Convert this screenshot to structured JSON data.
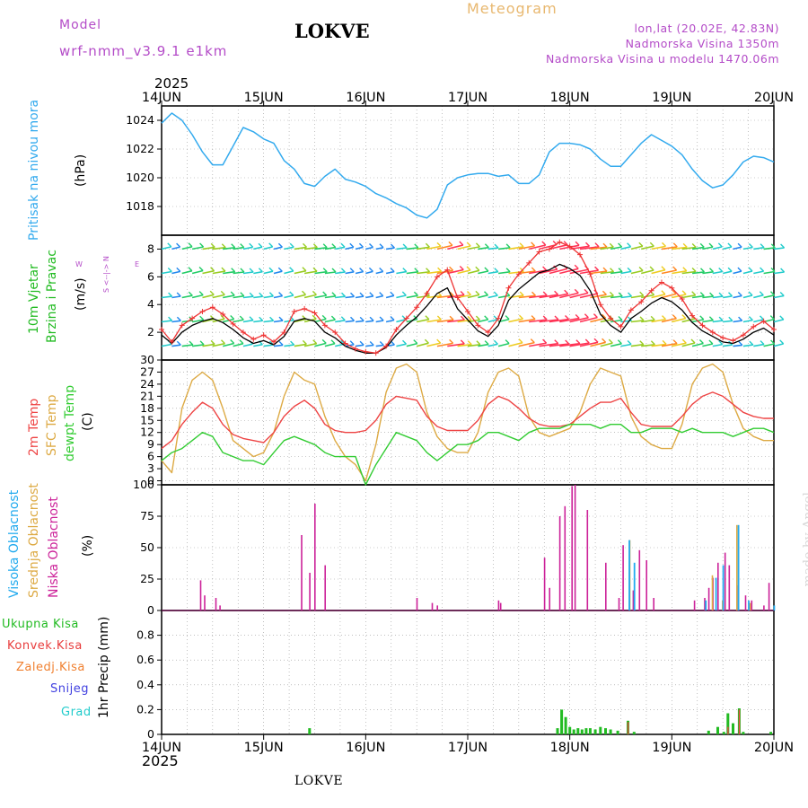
{
  "header": {
    "model_label": "Model",
    "model_name": "wrf-nmm_v3.9.1  e1km",
    "station": "LOKVE",
    "title": "Meteogram",
    "lonlat": "lon,lat (20.02E, 42.83N)",
    "elevation": "Nadmorska Visina 1350m",
    "model_elevation": "Nadmorska Visina u modelu 1470.06m",
    "year_top": "2025",
    "year_bottom": "2025",
    "footer_station": "LOKVE",
    "credit": "made by Angel"
  },
  "colors": {
    "pressure": "#33aaee",
    "temp2m": "#ee4444",
    "sfc_temp": "#ddaa44",
    "dewpt": "#33cc33",
    "wind_speed": "#ee3333",
    "wind_mean": "#000000",
    "cloud_high": "#22aaee",
    "cloud_mid": "#ddaa44",
    "cloud_low": "#cc2299",
    "precip_total": "#22bb22",
    "precip_conv": "#ee4444",
    "precip_frozen": "#f08030",
    "precip_snow": "#4040e0",
    "precip_hail": "#22cccc",
    "legend_purple": "#b44cc8"
  },
  "chart_data": [
    {
      "type": "line",
      "panel": "pressure",
      "title": "",
      "ylabel_lines": [
        "Pritisak na nivou mora",
        "(hPa)"
      ],
      "ylim": [
        1016,
        1025
      ],
      "yticks": [
        1018,
        1020,
        1022,
        1024
      ],
      "x_days": [
        0,
        0.1,
        0.2,
        0.3,
        0.4,
        0.5,
        0.6,
        0.7,
        0.8,
        0.9,
        1.0,
        1.1,
        1.2,
        1.3,
        1.4,
        1.5,
        1.6,
        1.7,
        1.8,
        1.9,
        2.0,
        2.1,
        2.2,
        2.3,
        2.4,
        2.5,
        2.6,
        2.7,
        2.8,
        2.9,
        3.0,
        3.1,
        3.2,
        3.3,
        3.4,
        3.5,
        3.6,
        3.7,
        3.8,
        3.9,
        4.0,
        4.1,
        4.2,
        4.3,
        4.4,
        4.5,
        4.6,
        4.7,
        4.8,
        4.9,
        5.0,
        5.1,
        5.2,
        5.3,
        5.4,
        5.5,
        5.6,
        5.7,
        5.8,
        5.9,
        6.0
      ],
      "values": [
        1023.8,
        1024.5,
        1024.0,
        1023.0,
        1021.8,
        1020.9,
        1020.9,
        1022.2,
        1023.5,
        1023.2,
        1022.7,
        1022.4,
        1021.2,
        1020.6,
        1019.6,
        1019.4,
        1020.1,
        1020.6,
        1019.9,
        1019.7,
        1019.4,
        1018.9,
        1018.6,
        1018.2,
        1017.9,
        1017.4,
        1017.2,
        1017.8,
        1019.5,
        1020.0,
        1020.2,
        1020.3,
        1020.3,
        1020.1,
        1020.2,
        1019.6,
        1019.6,
        1020.2,
        1021.8,
        1022.4,
        1022.4,
        1022.3,
        1022.0,
        1021.3,
        1020.8,
        1020.8,
        1021.6,
        1022.4,
        1023.0,
        1022.6,
        1022.2,
        1021.6,
        1020.6,
        1019.8,
        1019.3,
        1019.5,
        1020.2,
        1021.1,
        1021.5,
        1021.4,
        1021.1
      ]
    },
    {
      "type": "line",
      "panel": "wind",
      "title": "",
      "ylabel_lines": [
        "10m Vjetar",
        "Brzina i Pravac",
        "(m/s)"
      ],
      "direction_legend": [
        "W",
        "<-",
        "E",
        "N",
        "S"
      ],
      "ylim": [
        0,
        9
      ],
      "yticks": [
        2,
        4,
        6,
        8
      ],
      "x_days": [
        0,
        0.1,
        0.2,
        0.3,
        0.4,
        0.5,
        0.6,
        0.7,
        0.8,
        0.9,
        1.0,
        1.1,
        1.2,
        1.3,
        1.4,
        1.5,
        1.6,
        1.7,
        1.8,
        1.9,
        2.0,
        2.1,
        2.2,
        2.3,
        2.4,
        2.5,
        2.6,
        2.7,
        2.8,
        2.9,
        3.0,
        3.1,
        3.2,
        3.3,
        3.4,
        3.5,
        3.6,
        3.7,
        3.8,
        3.9,
        4.0,
        4.1,
        4.2,
        4.3,
        4.4,
        4.5,
        4.6,
        4.7,
        4.8,
        4.9,
        5.0,
        5.1,
        5.2,
        5.3,
        5.4,
        5.5,
        5.6,
        5.7,
        5.8,
        5.9,
        6.0
      ],
      "gust": [
        2.2,
        1.3,
        2.5,
        3.0,
        3.5,
        3.8,
        3.3,
        2.6,
        2.0,
        1.5,
        1.8,
        1.3,
        2.0,
        3.5,
        3.7,
        3.4,
        2.5,
        2.0,
        1.2,
        0.8,
        0.6,
        0.5,
        1.0,
        2.2,
        3.0,
        3.8,
        4.8,
        6.0,
        6.5,
        4.5,
        3.5,
        2.5,
        2.0,
        3.0,
        5.2,
        6.2,
        7.0,
        7.8,
        8.0,
        8.5,
        8.2,
        7.6,
        6.2,
        4.0,
        3.0,
        2.4,
        3.6,
        4.2,
        5.0,
        5.6,
        5.2,
        4.4,
        3.2,
        2.5,
        2.0,
        1.6,
        1.4,
        1.8,
        2.4,
        2.8,
        2.2
      ],
      "mean": [
        1.8,
        1.2,
        2.0,
        2.5,
        2.8,
        3.0,
        2.7,
        2.2,
        1.6,
        1.2,
        1.4,
        1.1,
        1.7,
        2.8,
        3.0,
        2.8,
        2.0,
        1.6,
        1.0,
        0.7,
        0.5,
        0.5,
        0.9,
        1.8,
        2.5,
        3.1,
        3.9,
        4.8,
        5.2,
        3.7,
        2.9,
        2.1,
        1.7,
        2.5,
        4.3,
        5.1,
        5.7,
        6.3,
        6.5,
        6.9,
        6.6,
        6.1,
        5.0,
        3.3,
        2.5,
        2.0,
        3.0,
        3.5,
        4.1,
        4.5,
        4.2,
        3.6,
        2.7,
        2.1,
        1.7,
        1.3,
        1.2,
        1.5,
        2.0,
        2.3,
        1.8
      ]
    },
    {
      "type": "line",
      "panel": "temperature",
      "title": "",
      "ylabel_lines": [
        "2m Temp",
        "SFC Temp",
        "dewpt Temp",
        "(C)"
      ],
      "ylim": [
        -1,
        30
      ],
      "yticks": [
        0,
        3,
        6,
        9,
        12,
        15,
        18,
        21,
        24,
        27,
        30
      ],
      "x_days": [
        0,
        0.1,
        0.2,
        0.3,
        0.4,
        0.5,
        0.6,
        0.7,
        0.8,
        0.9,
        1.0,
        1.1,
        1.2,
        1.3,
        1.4,
        1.5,
        1.6,
        1.7,
        1.8,
        1.9,
        2.0,
        2.1,
        2.2,
        2.3,
        2.4,
        2.5,
        2.6,
        2.7,
        2.8,
        2.9,
        3.0,
        3.1,
        3.2,
        3.3,
        3.4,
        3.5,
        3.6,
        3.7,
        3.8,
        3.9,
        4.0,
        4.1,
        4.2,
        4.3,
        4.4,
        4.5,
        4.6,
        4.7,
        4.8,
        4.9,
        5.0,
        5.1,
        5.2,
        5.3,
        5.4,
        5.5,
        5.6,
        5.7,
        5.8,
        5.9,
        6.0
      ],
      "temp2m": [
        8,
        10,
        14,
        17,
        19.5,
        18,
        14,
        11.5,
        10.5,
        10,
        9.5,
        12,
        16,
        18.5,
        20,
        18,
        14,
        12.5,
        12,
        12,
        12.5,
        15,
        19,
        21,
        20.5,
        20,
        16,
        13.5,
        12.5,
        12.5,
        12.5,
        15,
        19,
        21,
        20,
        18,
        15.5,
        14,
        13.5,
        13.5,
        14,
        16,
        18,
        19.5,
        19.5,
        20.5,
        17,
        14,
        13.5,
        13.5,
        13.5,
        16,
        19,
        21,
        22,
        21,
        19,
        17,
        16,
        15.5,
        15.5
      ],
      "sfc_temp": [
        5,
        2,
        18,
        25,
        27,
        25,
        18,
        10,
        8,
        6,
        7,
        12,
        21,
        27,
        25,
        24,
        16,
        10,
        6,
        4,
        0,
        9,
        22,
        28,
        29,
        27,
        17,
        11,
        8,
        7,
        7,
        12,
        22,
        27,
        28,
        26,
        16,
        12,
        11,
        12,
        13,
        17,
        24,
        28,
        27,
        26,
        16,
        11,
        9,
        8,
        8,
        14,
        24,
        28,
        29,
        27,
        19,
        13,
        11,
        10,
        10
      ],
      "dewpt": [
        5,
        7,
        8,
        10,
        12,
        11,
        7,
        6,
        5,
        5,
        4,
        7,
        10,
        11,
        10,
        9,
        7,
        6,
        6,
        6,
        -1,
        4,
        8,
        12,
        11,
        10,
        7,
        5,
        7,
        9,
        9,
        10,
        12,
        12,
        11,
        10,
        12,
        13,
        13,
        13,
        14,
        14,
        14,
        13,
        14,
        14,
        12,
        12,
        13,
        13,
        13,
        12,
        13,
        12,
        12,
        12,
        11,
        12,
        13,
        13,
        12
      ]
    },
    {
      "type": "bar",
      "panel": "cloud",
      "title": "",
      "ylabel_lines": [
        "Visoka Oblacnost",
        "Srednja Oblacnost",
        "Niska Oblacnost",
        "(%)"
      ],
      "ylim": [
        0,
        100
      ],
      "yticks": [
        0,
        25,
        50,
        75,
        100
      ],
      "low": [
        [
          0.38,
          24
        ],
        [
          0.42,
          12
        ],
        [
          0.53,
          10
        ],
        [
          0.57,
          4
        ],
        [
          1.37,
          60
        ],
        [
          1.45,
          30
        ],
        [
          1.5,
          85
        ],
        [
          1.6,
          36
        ],
        [
          2.5,
          10
        ],
        [
          2.65,
          6
        ],
        [
          2.7,
          4
        ],
        [
          3.3,
          8
        ],
        [
          3.32,
          6
        ],
        [
          3.75,
          42
        ],
        [
          3.8,
          18
        ],
        [
          3.9,
          75
        ],
        [
          3.95,
          83
        ],
        [
          4.02,
          99
        ],
        [
          4.05,
          100
        ],
        [
          4.17,
          80
        ],
        [
          4.35,
          38
        ],
        [
          4.48,
          10
        ],
        [
          4.52,
          52
        ],
        [
          4.62,
          16
        ],
        [
          4.68,
          48
        ],
        [
          4.75,
          40
        ],
        [
          4.82,
          10
        ],
        [
          5.22,
          8
        ],
        [
          5.32,
          10
        ],
        [
          5.36,
          18
        ],
        [
          5.4,
          26
        ],
        [
          5.45,
          38
        ],
        [
          5.52,
          46
        ],
        [
          5.56,
          36
        ],
        [
          5.65,
          20
        ],
        [
          5.72,
          12
        ],
        [
          5.78,
          8
        ],
        [
          5.9,
          4
        ],
        [
          5.95,
          22
        ]
      ],
      "mid": [
        [
          4.57,
          56
        ],
        [
          5.38,
          28
        ],
        [
          5.48,
          8
        ],
        [
          5.62,
          68
        ],
        [
          5.75,
          6
        ]
      ],
      "high": [
        [
          4.55,
          56
        ],
        [
          4.6,
          38
        ],
        [
          5.3,
          8
        ],
        [
          5.4,
          26
        ],
        [
          5.47,
          36
        ],
        [
          5.62,
          68
        ],
        [
          5.72,
          8
        ],
        [
          5.97,
          4
        ]
      ]
    },
    {
      "type": "bar",
      "panel": "precip",
      "title": "",
      "ylabel_lines": [
        "1hr Precip (mm)"
      ],
      "legend": [
        "Ukupna Kisa",
        "Konvek.Kisa",
        "Zaledj.Kisa",
        "Snijeg",
        "Grad"
      ],
      "ylim": [
        0,
        1.0
      ],
      "yticks": [
        0,
        0.2,
        0.4,
        0.6,
        0.8
      ],
      "total": [
        [
          1.45,
          0.05
        ],
        [
          3.88,
          0.05
        ],
        [
          3.92,
          0.2
        ],
        [
          3.96,
          0.14
        ],
        [
          4.0,
          0.06
        ],
        [
          4.04,
          0.04
        ],
        [
          4.08,
          0.05
        ],
        [
          4.12,
          0.04
        ],
        [
          4.16,
          0.05
        ],
        [
          4.2,
          0.05
        ],
        [
          4.25,
          0.04
        ],
        [
          4.3,
          0.06
        ],
        [
          4.35,
          0.05
        ],
        [
          4.4,
          0.04
        ],
        [
          4.47,
          0.03
        ],
        [
          4.57,
          0.11
        ],
        [
          4.63,
          0.02
        ],
        [
          5.36,
          0.03
        ],
        [
          5.45,
          0.06
        ],
        [
          5.51,
          0.02
        ],
        [
          5.55,
          0.17
        ],
        [
          5.6,
          0.09
        ],
        [
          5.66,
          0.21
        ],
        [
          5.7,
          0.02
        ],
        [
          5.97,
          0.02
        ]
      ],
      "conv": [
        [
          4.57,
          0.1
        ],
        [
          5.55,
          0.06
        ],
        [
          5.66,
          0.2
        ]
      ]
    }
  ],
  "xaxis": {
    "labels": [
      "14JUN",
      "15JUN",
      "16JUN",
      "17JUN",
      "18JUN",
      "19JUN",
      "20JUN"
    ]
  }
}
